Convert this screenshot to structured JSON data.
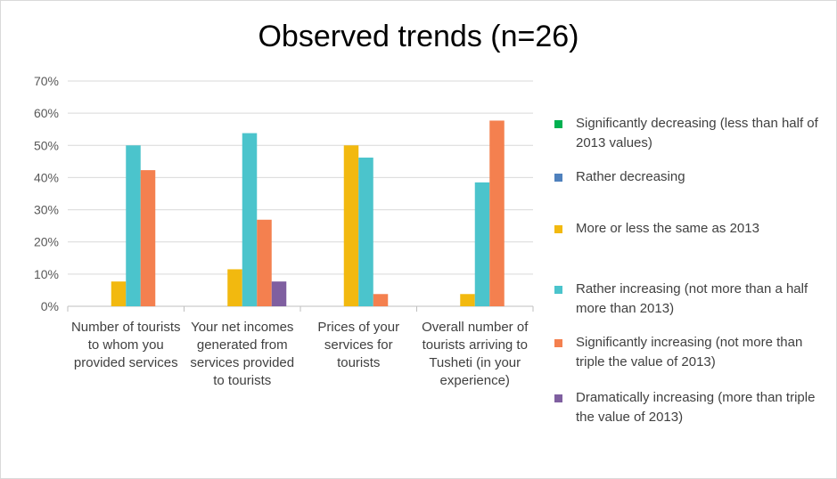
{
  "chart_data": {
    "type": "bar",
    "title": "Observed trends (n=26)",
    "xlabel": "",
    "ylabel": "",
    "ylim": [
      0,
      0.7
    ],
    "yticks": [
      "0%",
      "10%",
      "20%",
      "30%",
      "40%",
      "50%",
      "60%",
      "70%"
    ],
    "grid": true,
    "legend_position": "right",
    "categories": [
      "Number of tourists to whom you provided services",
      "Your net incomes generated from services provided to tourists",
      "Prices of your services for tourists",
      "Overall number of tourists arriving to Tusheti (in your experience)"
    ],
    "series": [
      {
        "name": "Significantly decreasing (less than half of 2013 values)",
        "color": "#00b050",
        "values": [
          0,
          0,
          0,
          0
        ]
      },
      {
        "name": "Rather decreasing",
        "color": "#4f81bd",
        "values": [
          0,
          0,
          0,
          0
        ]
      },
      {
        "name": "More or less the same as 2013",
        "color": "#f2b90f",
        "values": [
          0.077,
          0.115,
          0.5,
          0.038
        ]
      },
      {
        "name": "Rather increasing (not more than a half more than 2013)",
        "color": "#4bc4cc",
        "values": [
          0.5,
          0.538,
          0.462,
          0.385
        ]
      },
      {
        "name": "Significantly increasing (not more than triple the value of 2013)",
        "color": "#f4804f",
        "values": [
          0.423,
          0.269,
          0.038,
          0.577
        ]
      },
      {
        "name": "Dramatically increasing (more than triple the value of 2013)",
        "color": "#7f5fa0",
        "values": [
          0,
          0.077,
          0,
          0
        ]
      }
    ]
  }
}
